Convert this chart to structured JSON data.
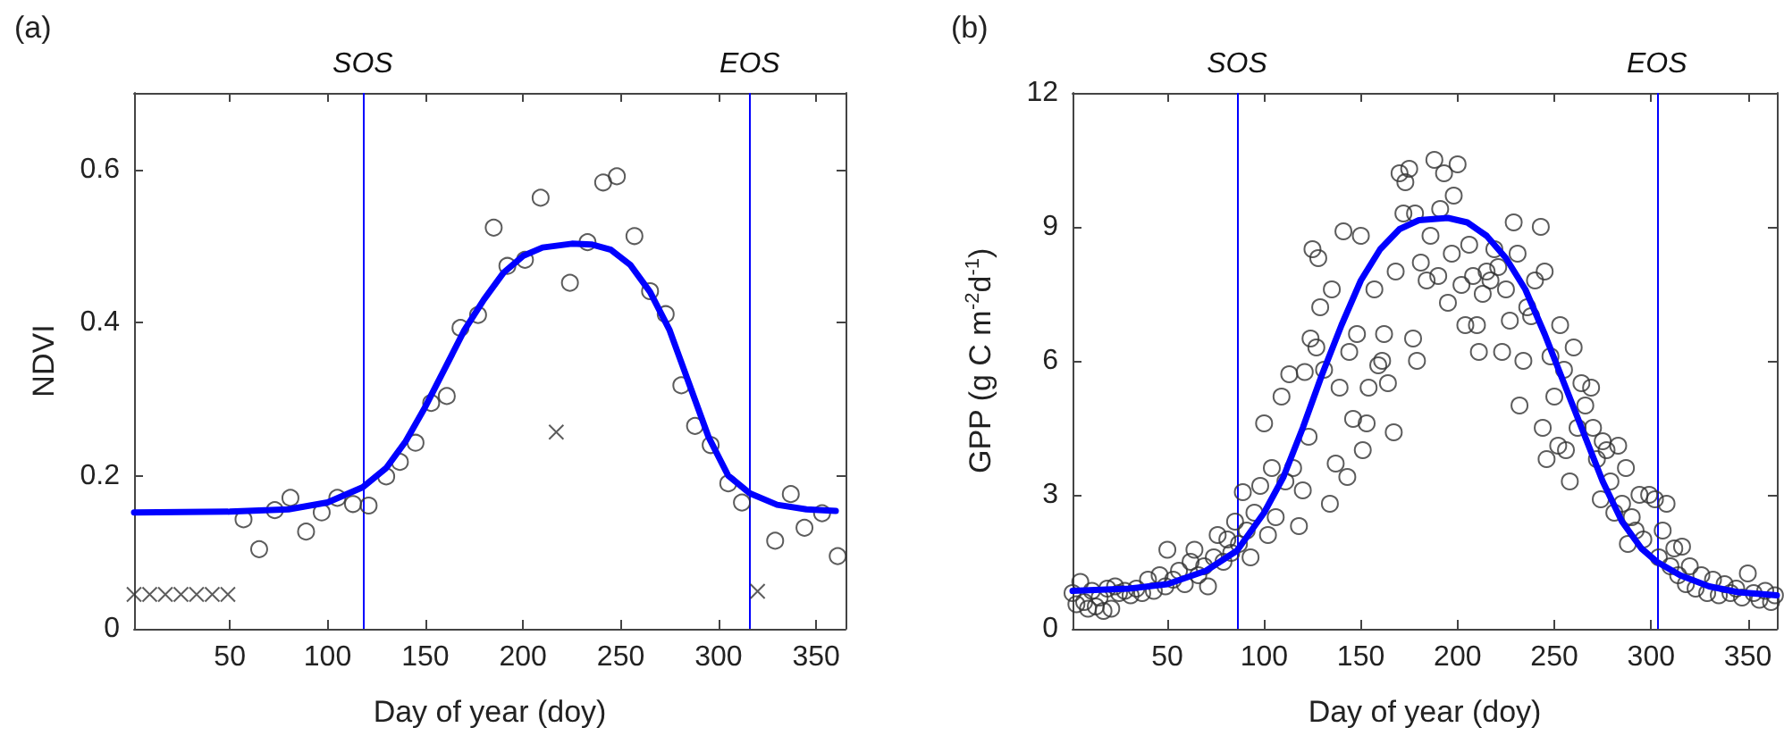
{
  "chart_data": [
    {
      "type": "scatter",
      "title": "(a)",
      "xlabel": "Day of year (doy)",
      "ylabel": "NDVI",
      "xlim": [
        1,
        365
      ],
      "ylim": [
        0,
        0.7
      ],
      "xticks": [
        50,
        100,
        150,
        200,
        250,
        300,
        350
      ],
      "yticks": [
        0,
        0.2,
        0.4,
        0.6
      ],
      "grid": false,
      "series": [
        {
          "marker": "circle",
          "color": "#333333",
          "x": [
            57,
            65,
            73,
            81,
            89,
            97,
            105,
            113,
            121,
            130,
            137,
            145,
            153,
            161,
            168,
            177,
            185,
            192,
            201,
            209,
            224,
            233,
            241,
            248,
            257,
            265,
            273,
            281,
            288,
            296,
            305,
            312,
            329,
            337,
            344,
            353,
            361
          ],
          "values": [
            0.143,
            0.104,
            0.155,
            0.171,
            0.127,
            0.152,
            0.171,
            0.163,
            0.161,
            0.199,
            0.218,
            0.243,
            0.295,
            0.304,
            0.393,
            0.41,
            0.524,
            0.474,
            0.482,
            0.563,
            0.452,
            0.505,
            0.583,
            0.591,
            0.513,
            0.441,
            0.411,
            0.318,
            0.265,
            0.24,
            0.19,
            0.165,
            0.115,
            0.176,
            0.132,
            0.151,
            0.095
          ]
        },
        {
          "type": "scatter",
          "marker": "cross",
          "color": "#333333",
          "x": [
            1,
            9,
            17,
            25,
            33,
            41,
            49,
            217,
            320
          ],
          "values": [
            0.045,
            0.045,
            0.045,
            0.045,
            0.045,
            0.045,
            0.045,
            0.257,
            0.049
          ]
        },
        {
          "type": "line",
          "marker": "none",
          "line_style": "solid",
          "color": "#0000ff",
          "x": [
            1,
            50,
            80,
            100,
            118,
            130,
            140,
            150,
            160,
            170,
            180,
            190,
            200,
            210,
            225,
            235,
            245,
            255,
            265,
            275,
            285,
            295,
            305,
            316,
            330,
            345,
            360
          ],
          "values": [
            0.152,
            0.153,
            0.156,
            0.165,
            0.185,
            0.21,
            0.245,
            0.29,
            0.34,
            0.39,
            0.43,
            0.465,
            0.487,
            0.498,
            0.503,
            0.502,
            0.495,
            0.475,
            0.44,
            0.39,
            0.32,
            0.25,
            0.2,
            0.177,
            0.162,
            0.156,
            0.154
          ]
        }
      ],
      "ref_lines": [
        {
          "axis": "x",
          "value": 118,
          "label": "SOS",
          "color": "#0000ff"
        },
        {
          "axis": "x",
          "value": 316,
          "label": "EOS",
          "color": "#0000ff"
        }
      ]
    },
    {
      "type": "scatter",
      "title": "(b)",
      "xlabel": "Day of year (doy)",
      "ylabel": "GPP (g C m$^{-2}$d$^{-1}$)",
      "xlim": [
        1,
        365
      ],
      "ylim": [
        0,
        12
      ],
      "xticks": [
        50,
        100,
        150,
        200,
        250,
        300,
        350
      ],
      "yticks": [
        0,
        3,
        6,
        9,
        12
      ],
      "grid": false,
      "series": [
        {
          "marker": "circle",
          "color": "#333333",
          "x": [
            1,
            3,
            5,
            7,
            9,
            11,
            13,
            15,
            17,
            19,
            21,
            23,
            25,
            28,
            31,
            34,
            37,
            40,
            43,
            46,
            49,
            50,
            53,
            56,
            59,
            62,
            64,
            66,
            69,
            71,
            74,
            76,
            79,
            81,
            83,
            85,
            87,
            89,
            91,
            93,
            95,
            98,
            100,
            102,
            104,
            106,
            109,
            111,
            113,
            115,
            118,
            120,
            121,
            123,
            124,
            125,
            127,
            128,
            129,
            131,
            134,
            135,
            137,
            139,
            141,
            143,
            144,
            146,
            148,
            150,
            151,
            153,
            154,
            157,
            159,
            161,
            162,
            164,
            167,
            168,
            170,
            172,
            173,
            175,
            177,
            178,
            179,
            181,
            184,
            186,
            188,
            190,
            191,
            193,
            195,
            197,
            198,
            200,
            202,
            204,
            206,
            208,
            210,
            211,
            213,
            215,
            217,
            219,
            221,
            223,
            225,
            227,
            229,
            231,
            232,
            234,
            236,
            238,
            240,
            243,
            244,
            245,
            246,
            248,
            250,
            252,
            253,
            255,
            256,
            258,
            260,
            262,
            264,
            266,
            269,
            270,
            272,
            274,
            275,
            277,
            279,
            281,
            283,
            285,
            287,
            288,
            290,
            292,
            294,
            296,
            299,
            302,
            304,
            306,
            308,
            310,
            312,
            314,
            316,
            318,
            320,
            323,
            326,
            329,
            332,
            335,
            338,
            341,
            344,
            347,
            350,
            353,
            356,
            359,
            362,
            364
          ],
          "values": [
            0.8,
            0.55,
            1.05,
            0.6,
            0.45,
            0.85,
            0.5,
            0.7,
            0.4,
            0.9,
            0.45,
            0.95,
            0.8,
            0.85,
            0.75,
            0.9,
            0.8,
            1.1,
            0.85,
            1.2,
            0.95,
            1.77,
            1.1,
            1.3,
            1.0,
            1.5,
            1.77,
            1.2,
            1.4,
            0.95,
            1.6,
            2.1,
            1.5,
            2.0,
            1.7,
            2.4,
            1.9,
            3.06,
            2.2,
            1.6,
            2.6,
            3.2,
            4.6,
            2.1,
            3.6,
            2.5,
            5.2,
            3.3,
            5.7,
            3.6,
            2.3,
            3.1,
            5.75,
            4.3,
            6.5,
            8.5,
            6.3,
            8.3,
            7.2,
            5.8,
            2.8,
            7.6,
            3.7,
            5.4,
            8.9,
            3.4,
            6.2,
            4.7,
            6.6,
            8.8,
            4.0,
            4.6,
            5.4,
            7.6,
            5.9,
            6.0,
            6.6,
            5.5,
            4.4,
            8.0,
            10.2,
            9.3,
            10.0,
            10.3,
            6.5,
            9.3,
            6.0,
            8.2,
            7.8,
            8.8,
            10.5,
            7.9,
            9.4,
            10.2,
            7.3,
            8.4,
            9.7,
            10.4,
            7.7,
            6.8,
            8.6,
            7.9,
            6.8,
            6.2,
            7.5,
            8.0,
            7.8,
            8.5,
            8.1,
            6.2,
            7.6,
            6.9,
            9.1,
            8.4,
            5.0,
            6.0,
            7.2,
            7.0,
            7.8,
            9.0,
            4.5,
            8.0,
            3.8,
            6.1,
            5.2,
            4.1,
            6.8,
            5.8,
            4.0,
            3.3,
            6.3,
            4.5,
            5.5,
            5.0,
            5.4,
            4.5,
            3.8,
            2.9,
            4.2,
            4.0,
            3.3,
            2.6,
            4.1,
            2.8,
            3.6,
            1.9,
            2.5,
            2.2,
            3.0,
            2.0,
            3.0,
            2.9,
            1.6,
            2.2,
            2.8,
            1.4,
            1.8,
            1.2,
            1.84,
            1.0,
            1.4,
            0.9,
            1.2,
            0.8,
            1.1,
            0.75,
            1.0,
            0.8,
            0.9,
            0.7,
            1.24,
            0.8,
            0.65,
            0.85,
            0.6,
            0.75
          ]
        },
        {
          "type": "line",
          "marker": "none",
          "line_style": "solid",
          "color": "#0000ff",
          "x": [
            1,
            30,
            50,
            70,
            86,
            100,
            110,
            120,
            130,
            140,
            150,
            160,
            170,
            180,
            195,
            205,
            215,
            225,
            235,
            245,
            255,
            265,
            275,
            285,
            295,
            303,
            315,
            330,
            345,
            365
          ],
          "values": [
            0.85,
            0.9,
            1.0,
            1.3,
            1.75,
            2.6,
            3.4,
            4.5,
            5.7,
            6.8,
            7.8,
            8.5,
            8.95,
            9.15,
            9.2,
            9.1,
            8.8,
            8.3,
            7.6,
            6.6,
            5.5,
            4.4,
            3.3,
            2.4,
            1.8,
            1.5,
            1.2,
            0.95,
            0.82,
            0.75
          ]
        }
      ],
      "ref_lines": [
        {
          "axis": "x",
          "value": 86,
          "label": "SOS",
          "color": "#0000ff"
        },
        {
          "axis": "x",
          "value": 303,
          "label": "EOS",
          "color": "#0000ff"
        }
      ]
    }
  ]
}
